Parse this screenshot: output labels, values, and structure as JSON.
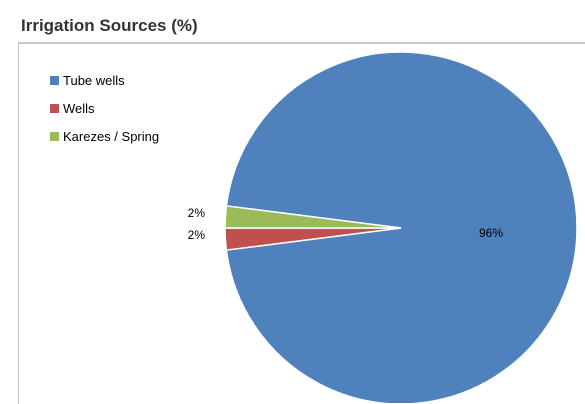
{
  "title": "Irrigation Sources (%)",
  "chart_data": {
    "type": "pie",
    "title": "Irrigation Sources (%)",
    "categories": [
      "Tube wells",
      "Wells",
      "Karezes / Spring"
    ],
    "values": [
      96,
      2,
      2
    ],
    "data_labels": [
      "96%",
      "2%",
      "2%"
    ],
    "colors": [
      "#4f81bd",
      "#c0504d",
      "#9bbb59"
    ],
    "legend_position": "top-left"
  }
}
